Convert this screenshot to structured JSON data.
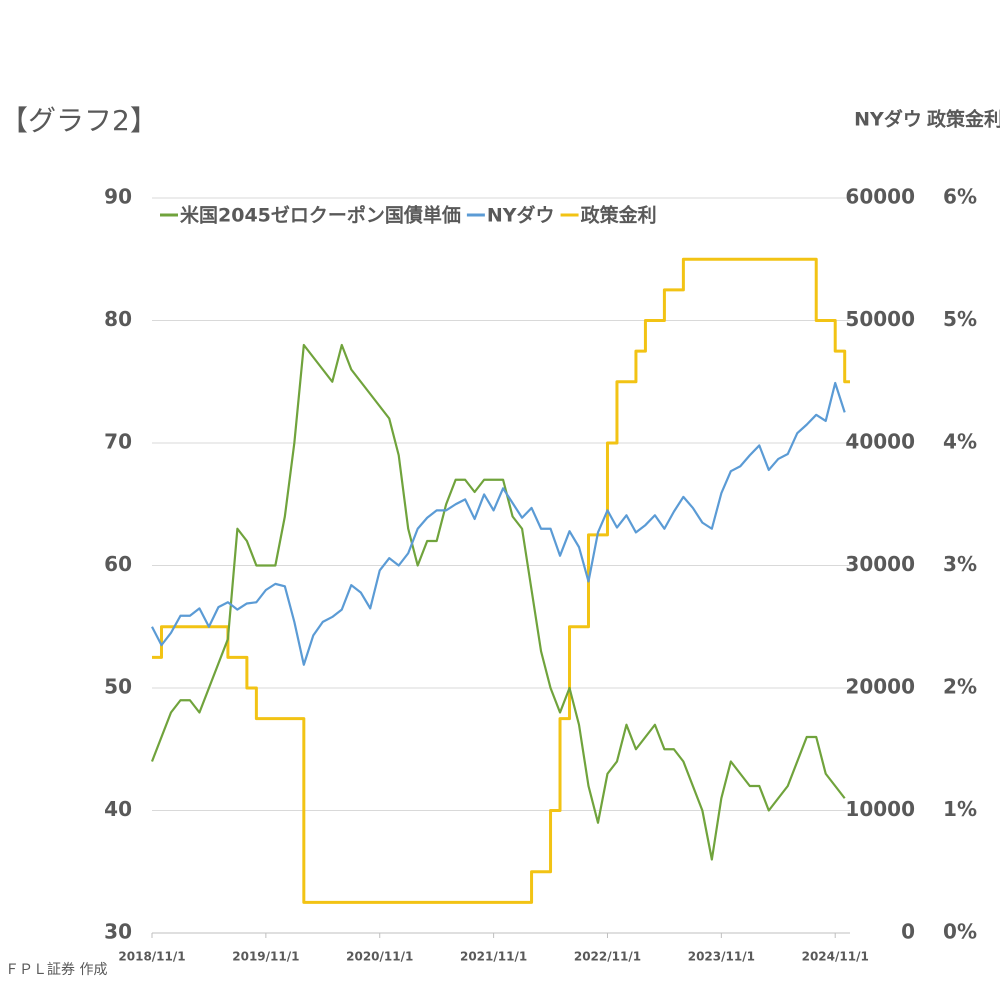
{
  "header": {
    "title": "【グラフ2】",
    "y2_header": "NYダウ",
    "y3_header": "政策金利"
  },
  "footer": "ＦＰＬ証券 作成",
  "chart_data": {
    "type": "line",
    "x": [
      "2018/11",
      "2018/12",
      "2019/1",
      "2019/2",
      "2019/3",
      "2019/4",
      "2019/5",
      "2019/6",
      "2019/7",
      "2019/8",
      "2019/9",
      "2019/10",
      "2019/11",
      "2019/12",
      "2020/1",
      "2020/2",
      "2020/3",
      "2020/4",
      "2020/5",
      "2020/6",
      "2020/7",
      "2020/8",
      "2020/9",
      "2020/10",
      "2020/11",
      "2020/12",
      "2021/1",
      "2021/2",
      "2021/3",
      "2021/4",
      "2021/5",
      "2021/6",
      "2021/7",
      "2021/8",
      "2021/9",
      "2021/10",
      "2021/11",
      "2021/12",
      "2022/1",
      "2022/2",
      "2022/3",
      "2022/4",
      "2022/5",
      "2022/6",
      "2022/7",
      "2022/8",
      "2022/9",
      "2022/10",
      "2022/11",
      "2022/12",
      "2023/1",
      "2023/2",
      "2023/3",
      "2023/4",
      "2023/5",
      "2023/6",
      "2023/7",
      "2023/8",
      "2023/9",
      "2023/10",
      "2023/11",
      "2023/12",
      "2024/1",
      "2024/2",
      "2024/3",
      "2024/4",
      "2024/5",
      "2024/6",
      "2024/7",
      "2024/8",
      "2024/9",
      "2024/10",
      "2024/11",
      "2024/12"
    ],
    "xlim": [
      "2018/11/1",
      "2024/12/18"
    ],
    "xticks": [
      "2018/11/1",
      "2019/11/1",
      "2020/11/1",
      "2021/11/1",
      "2022/11/1",
      "2023/11/1",
      "2024/11/1"
    ],
    "ylim": [
      30,
      90
    ],
    "yticks": [
      30,
      40,
      50,
      60,
      70,
      80,
      90
    ],
    "y2lim": [
      0,
      60000
    ],
    "y2ticks": [
      0,
      10000,
      20000,
      30000,
      40000,
      50000,
      60000
    ],
    "y3lim": [
      0,
      6
    ],
    "y3ticks": [
      {
        "value": 0,
        "label": "0%"
      },
      {
        "value": 1,
        "label": "1%"
      },
      {
        "value": 2,
        "label": "2%"
      },
      {
        "value": 3,
        "label": "3%"
      },
      {
        "value": 4,
        "label": "4%"
      },
      {
        "value": 5,
        "label": "5%"
      },
      {
        "value": 6,
        "label": "6%"
      }
    ],
    "grid": true,
    "series": [
      {
        "name": "米国2045ゼロクーポン国債単価",
        "color": "#70a33c",
        "axis": "y",
        "values": [
          44,
          46,
          48,
          49,
          49,
          48,
          50,
          52,
          54,
          63,
          62,
          60,
          60,
          60,
          64,
          70,
          78,
          77,
          76,
          75,
          78,
          76,
          75,
          74,
          73,
          72,
          69,
          63,
          60,
          62,
          62,
          65,
          67,
          67,
          66,
          67,
          67,
          67,
          64,
          63,
          58,
          53,
          50,
          48,
          50,
          47,
          42,
          39,
          43,
          44,
          47,
          45,
          46,
          47,
          45,
          45,
          44,
          42,
          40,
          36,
          41,
          44,
          43,
          42,
          42,
          40,
          41,
          42,
          44,
          46,
          46,
          43,
          42,
          41
        ]
      },
      {
        "name": "NYダウ",
        "color": "#5b9bd5",
        "axis": "y2",
        "values": [
          25000,
          23500,
          24500,
          25900,
          25900,
          26500,
          25000,
          26600,
          27000,
          26400,
          26900,
          27000,
          28000,
          28500,
          28300,
          25400,
          21900,
          24300,
          25400,
          25800,
          26400,
          28400,
          27800,
          26500,
          29600,
          30600,
          30000,
          31000,
          33000,
          33900,
          34500,
          34500,
          35000,
          35400,
          33800,
          35800,
          34500,
          36300,
          35100,
          33900,
          34700,
          33000,
          33000,
          30800,
          32800,
          31500,
          28700,
          32700,
          34500,
          33100,
          34100,
          32700,
          33300,
          34100,
          33000,
          34400,
          35600,
          34700,
          33500,
          33000,
          35900,
          37700,
          38100,
          39000,
          39800,
          37800,
          38700,
          39100,
          40800,
          41500,
          42300,
          41800,
          44900,
          42500
        ]
      },
      {
        "name": "政策金利",
        "color": "#f2c314",
        "axis": "y3",
        "step": true,
        "values": [
          2.25,
          2.5,
          2.5,
          2.5,
          2.5,
          2.5,
          2.5,
          2.5,
          2.25,
          2.25,
          2.0,
          1.75,
          1.75,
          1.75,
          1.75,
          1.75,
          0.25,
          0.25,
          0.25,
          0.25,
          0.25,
          0.25,
          0.25,
          0.25,
          0.25,
          0.25,
          0.25,
          0.25,
          0.25,
          0.25,
          0.25,
          0.25,
          0.25,
          0.25,
          0.25,
          0.25,
          0.25,
          0.25,
          0.25,
          0.25,
          0.5,
          0.5,
          1.0,
          1.75,
          2.5,
          2.5,
          3.25,
          3.25,
          4.0,
          4.5,
          4.5,
          4.75,
          5.0,
          5.0,
          5.25,
          5.25,
          5.5,
          5.5,
          5.5,
          5.5,
          5.5,
          5.5,
          5.5,
          5.5,
          5.5,
          5.5,
          5.5,
          5.5,
          5.5,
          5.5,
          5.0,
          5.0,
          4.75,
          4.5
        ]
      }
    ]
  }
}
